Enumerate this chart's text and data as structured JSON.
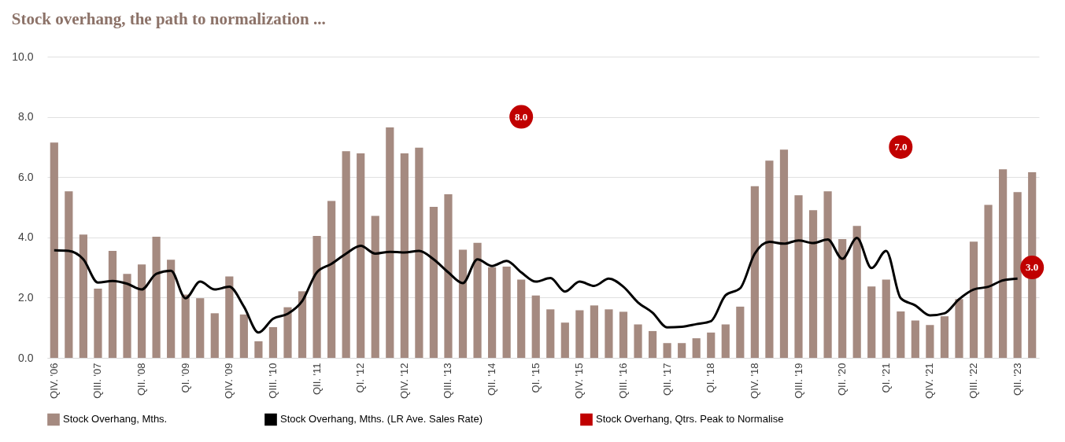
{
  "chart_data": {
    "type": "bar",
    "title": "Stock overhang, the path to normalization ...",
    "categories": [
      "QIV. '06",
      null,
      null,
      "QIII. '07",
      null,
      null,
      "QII. '08",
      null,
      null,
      "QI. '09",
      null,
      null,
      "QIV. '09",
      null,
      null,
      "QIII. '10",
      null,
      null,
      "QII. '11",
      null,
      null,
      "QI. '12",
      null,
      null,
      "QIV. '12",
      null,
      null,
      "QIII. '13",
      null,
      null,
      "QII. '14",
      null,
      null,
      "QI. '15",
      null,
      null,
      "QIV. '15",
      null,
      null,
      "QIII. '16",
      null,
      null,
      "QII. '17",
      null,
      null,
      "QI. '18",
      null,
      null,
      "QIV. '18",
      null,
      null,
      "QIII. '19",
      null,
      null,
      "QII. '20",
      null,
      null,
      "QI. '21",
      null,
      null,
      "QIV. '21",
      null,
      null,
      "QIII. '22",
      null,
      null,
      "QII. '23",
      null
    ],
    "series": [
      {
        "name": "Stock Overhang, Mths.",
        "color": "#a58a80",
        "values": [
          7.15,
          5.53,
          4.09,
          2.3,
          3.55,
          2.79,
          3.1,
          4.02,
          3.26,
          2.1,
          1.98,
          1.48,
          2.7,
          1.44,
          0.55,
          1.02,
          1.68,
          2.21,
          4.05,
          5.21,
          6.86,
          6.79,
          4.71,
          7.65,
          6.79,
          6.98,
          5.01,
          5.43,
          3.59,
          3.82,
          3.01,
          3.03,
          2.6,
          2.07,
          1.61,
          1.17,
          1.58,
          1.74,
          1.61,
          1.53,
          1.11,
          0.89,
          0.49,
          0.49,
          0.65,
          0.84,
          1.11,
          1.7,
          5.7,
          6.55,
          6.91,
          5.4,
          4.9,
          5.53,
          3.94,
          4.38,
          2.37,
          2.6,
          1.54,
          1.24,
          1.09,
          1.38,
          1.95,
          3.86,
          5.08,
          6.26,
          5.5,
          6.16
        ]
      },
      {
        "name": "Stock Overhang, Mths. (LR Ave. Sales Rate)",
        "type": "line",
        "color": "#000000",
        "line_style": "solid",
        "values": [
          3.57,
          3.55,
          3.27,
          2.5,
          2.55,
          2.46,
          2.27,
          2.79,
          2.89,
          1.98,
          2.53,
          2.27,
          2.36,
          1.7,
          0.84,
          1.3,
          1.46,
          1.89,
          2.84,
          3.12,
          3.46,
          3.72,
          3.46,
          3.52,
          3.5,
          3.55,
          3.27,
          2.84,
          2.48,
          3.27,
          3.05,
          3.22,
          2.84,
          2.53,
          2.65,
          2.2,
          2.53,
          2.39,
          2.63,
          2.36,
          1.84,
          1.5,
          1.01,
          1.03,
          1.12,
          1.22,
          2.08,
          2.31,
          3.46,
          3.85,
          3.79,
          3.9,
          3.81,
          3.93,
          3.29,
          3.98,
          2.98,
          3.55,
          1.98,
          1.74,
          1.41,
          1.48,
          1.95,
          2.27,
          2.36,
          2.57,
          2.63,
          null
        ]
      },
      {
        "name": "Stock Overhang, Qtrs. Peak to Normalise",
        "type": "scatter",
        "marker": "circle",
        "color": "#c00000",
        "values": [
          null,
          null,
          null,
          null,
          null,
          null,
          null,
          null,
          null,
          null,
          null,
          null,
          null,
          null,
          null,
          null,
          null,
          null,
          null,
          null,
          null,
          null,
          null,
          null,
          null,
          null,
          null,
          null,
          null,
          null,
          null,
          null,
          8.0,
          null,
          null,
          null,
          null,
          null,
          null,
          null,
          null,
          null,
          null,
          null,
          null,
          null,
          null,
          null,
          null,
          null,
          null,
          null,
          null,
          null,
          null,
          null,
          null,
          null,
          7.0,
          null,
          null,
          null,
          null,
          null,
          null,
          null,
          null,
          3.0
        ],
        "value_labels": [
          null,
          null,
          null,
          null,
          null,
          null,
          null,
          null,
          null,
          null,
          null,
          null,
          null,
          null,
          null,
          null,
          null,
          null,
          null,
          null,
          null,
          null,
          null,
          null,
          null,
          null,
          null,
          null,
          null,
          null,
          null,
          null,
          "8.0",
          null,
          null,
          null,
          null,
          null,
          null,
          null,
          null,
          null,
          null,
          null,
          null,
          null,
          null,
          null,
          null,
          null,
          null,
          null,
          null,
          null,
          null,
          null,
          null,
          null,
          "7.0",
          null,
          null,
          null,
          null,
          null,
          null,
          null,
          null,
          "3.0"
        ]
      }
    ],
    "ylim": [
      0,
      10
    ],
    "yticks": [
      {
        "value": 0,
        "label": "0.0"
      },
      {
        "value": 2,
        "label": "2.0"
      },
      {
        "value": 4,
        "label": "4.0"
      },
      {
        "value": 6,
        "label": "6.0"
      },
      {
        "value": 8,
        "label": "8.0"
      },
      {
        "value": 10,
        "label": "10.0"
      }
    ],
    "grid": "y",
    "legend": "bottom"
  }
}
